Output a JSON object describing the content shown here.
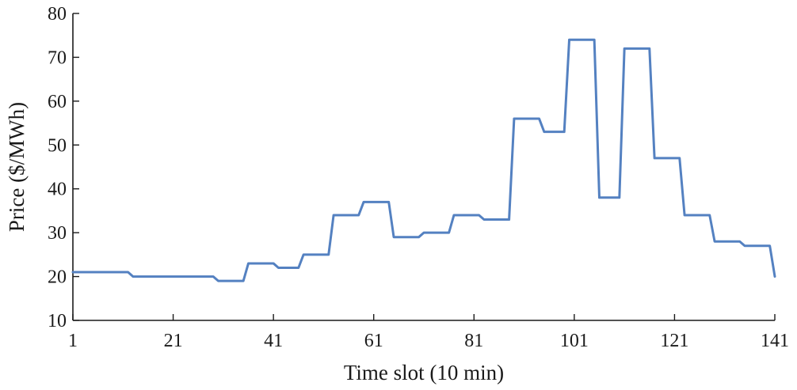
{
  "chart_data": {
    "type": "line",
    "title": "",
    "xlabel": "Time slot (10 min)",
    "ylabel": "Price ($/MWh)",
    "xlim": [
      1,
      141
    ],
    "ylim": [
      10,
      80
    ],
    "xticks": [
      1,
      21,
      41,
      61,
      81,
      101,
      121,
      141
    ],
    "yticks": [
      10,
      20,
      30,
      40,
      50,
      60,
      70,
      80
    ],
    "grid": false,
    "legend": "none",
    "color": "#5481C1",
    "series": [
      {
        "x": [
          1,
          12,
          13,
          29,
          30,
          35,
          36,
          41,
          42,
          46,
          47,
          52,
          53,
          58,
          59,
          64,
          65,
          70,
          71,
          76,
          77,
          82,
          83,
          88,
          89,
          94,
          95,
          99,
          100,
          105,
          106,
          110,
          111,
          116,
          117,
          122,
          123,
          128,
          129,
          134,
          135,
          140,
          141
        ],
        "y": [
          21,
          21,
          20,
          20,
          19,
          19,
          23,
          23,
          22,
          22,
          25,
          25,
          34,
          34,
          37,
          37,
          29,
          29,
          30,
          30,
          34,
          34,
          33,
          33,
          56,
          56,
          53,
          53,
          74,
          74,
          38,
          38,
          72,
          72,
          47,
          47,
          34,
          34,
          28,
          28,
          27,
          27,
          20
        ]
      }
    ]
  }
}
